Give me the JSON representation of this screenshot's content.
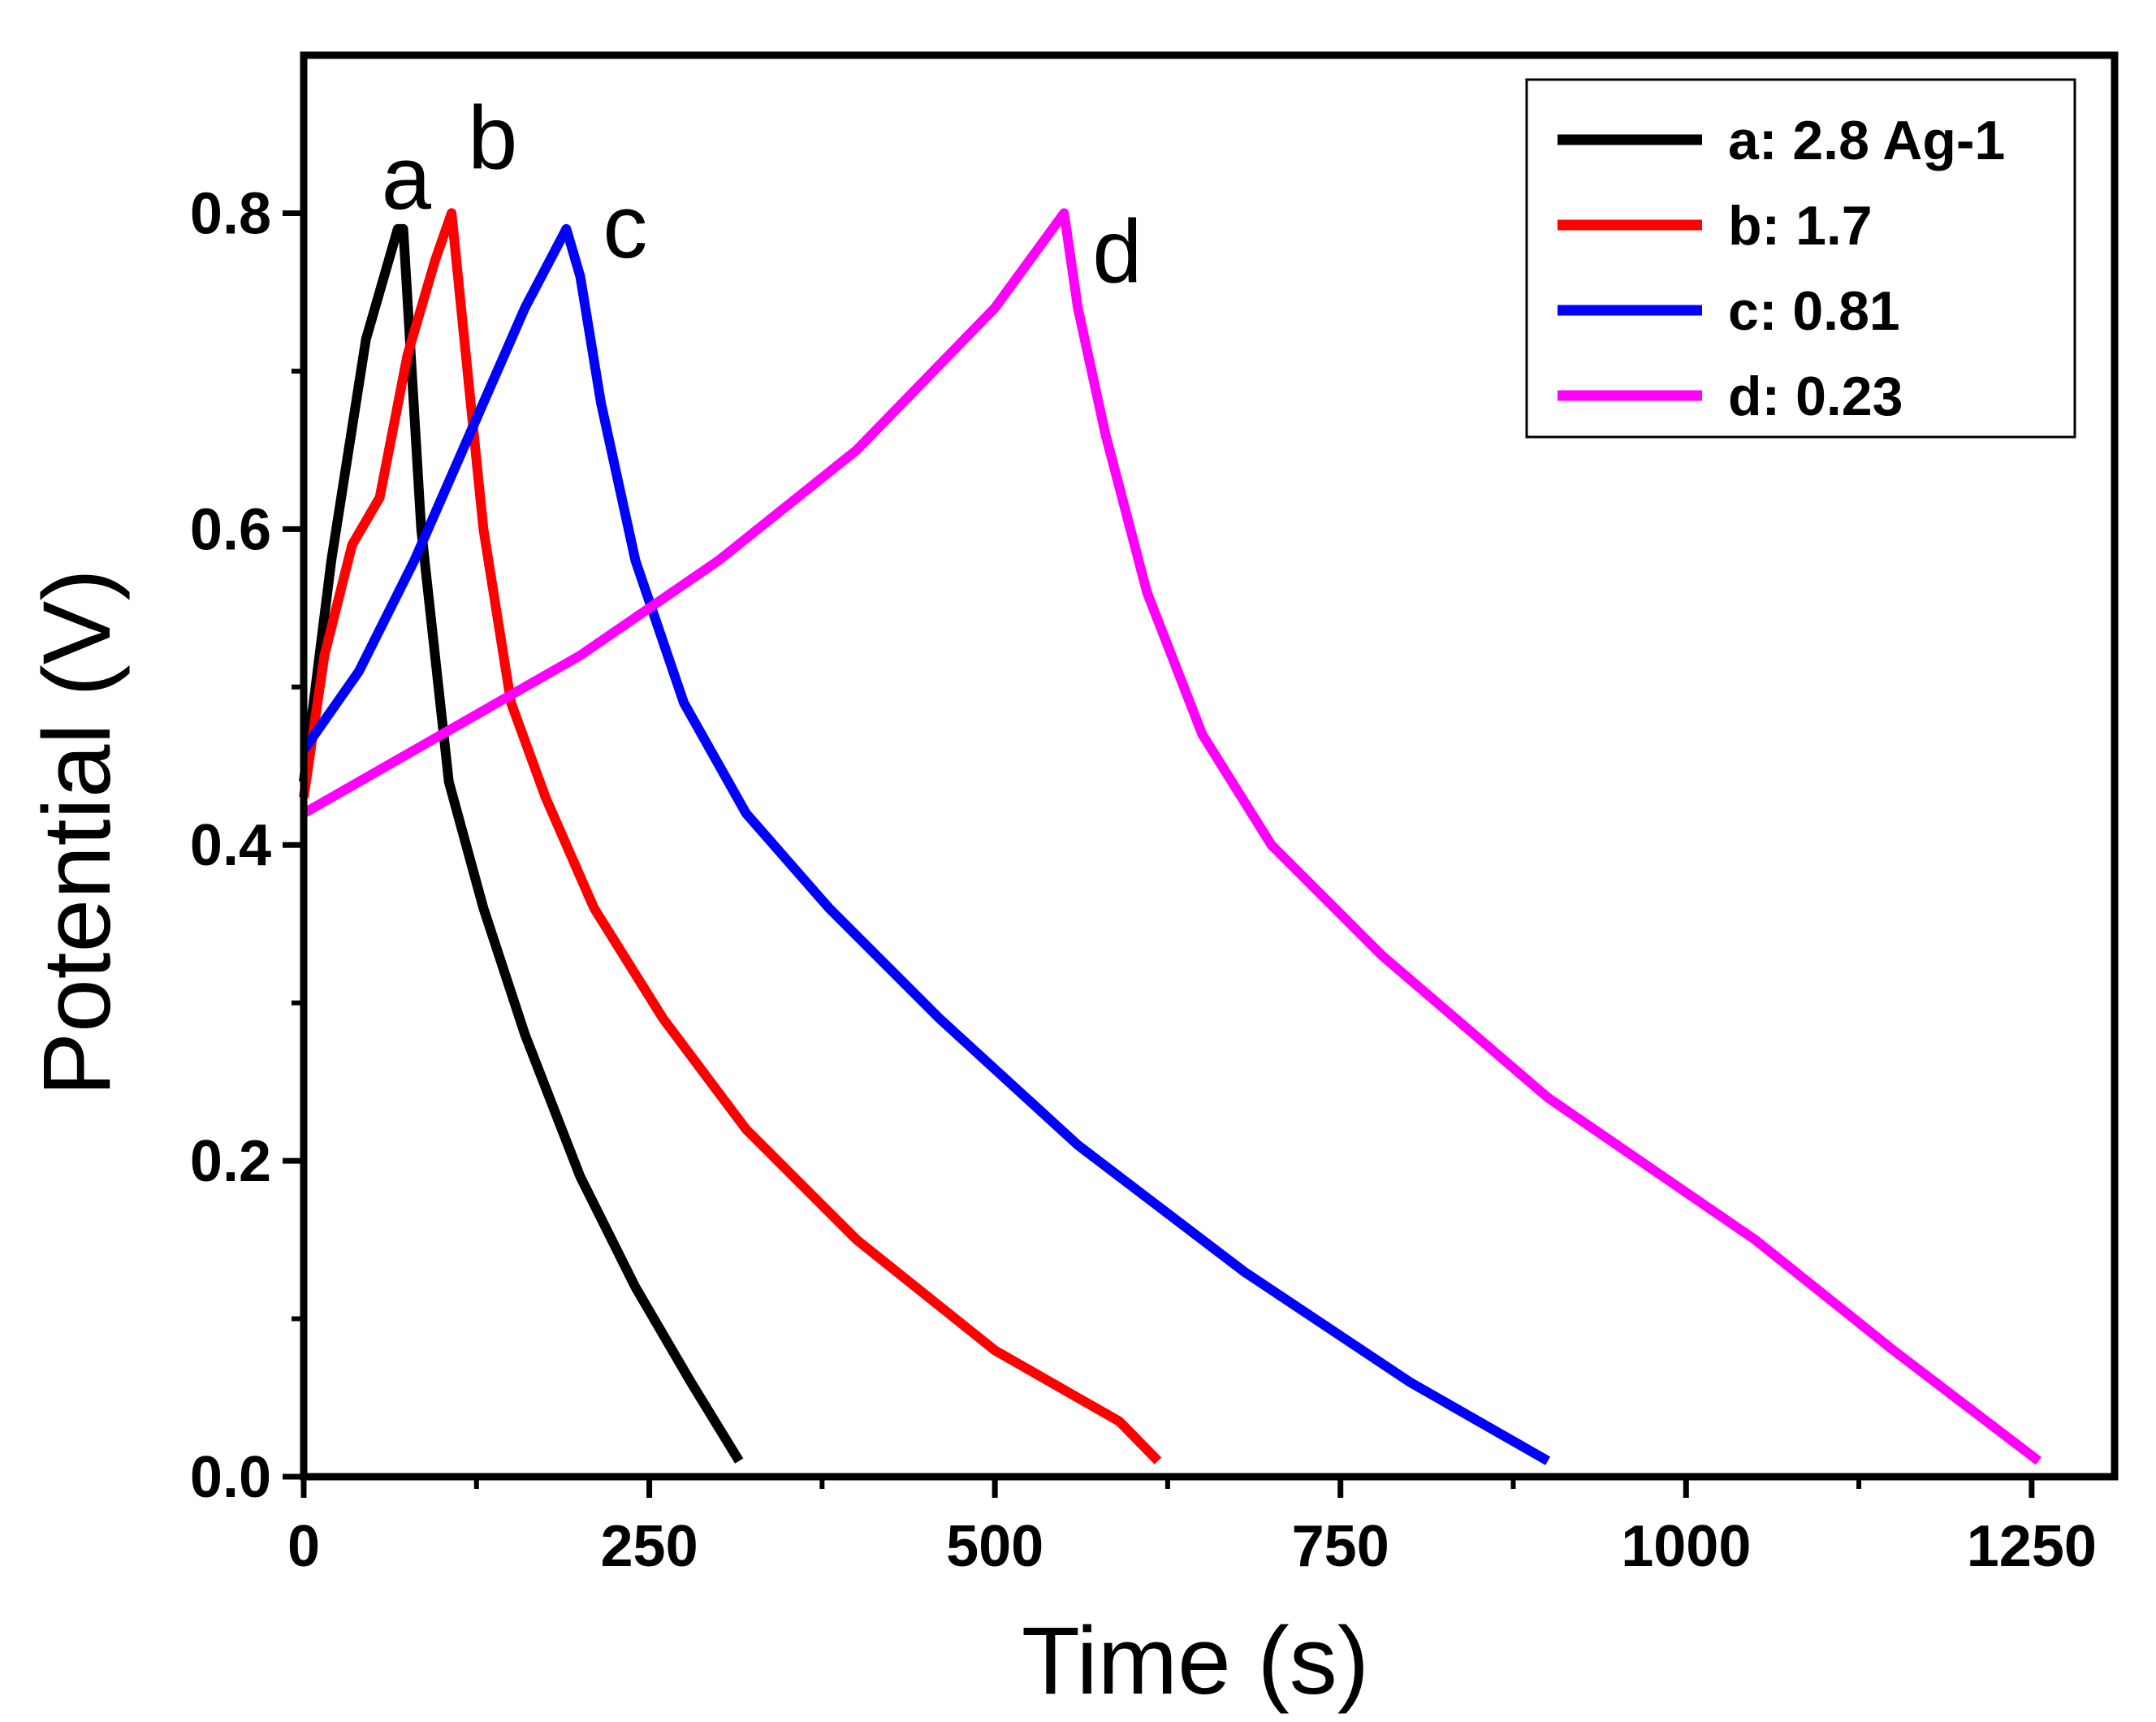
{
  "chart_data": {
    "type": "line",
    "title": "",
    "xlabel": "Time (s)",
    "ylabel": "Potential (V)",
    "xlim": [
      0,
      1310
    ],
    "ylim": [
      0,
      0.9
    ],
    "xticks": [
      0,
      250,
      500,
      750,
      1000,
      1250
    ],
    "xtick_labels": [
      "0",
      "250",
      "500",
      "750",
      "1000",
      "1250"
    ],
    "yticks": [
      0.0,
      0.2,
      0.4,
      0.6,
      0.8
    ],
    "ytick_labels": [
      "0.0",
      "0.2",
      "0.4",
      "0.6",
      "0.8"
    ],
    "grid": false,
    "legend_position": "top-right",
    "series": [
      {
        "name": "a: 2.8 Ag-1",
        "color": "#000000",
        "label": "a",
        "x": [
          0,
          20,
          45,
          68,
          72,
          85,
          105,
          130,
          160,
          200,
          240,
          280,
          315
        ],
        "y": [
          0.44,
          0.58,
          0.72,
          0.79,
          0.79,
          0.6,
          0.44,
          0.36,
          0.28,
          0.19,
          0.12,
          0.06,
          0.01
        ]
      },
      {
        "name": "b: 1.7",
        "color": "#ff0000",
        "label": "b",
        "x": [
          0,
          15,
          35,
          55,
          75,
          95,
          107,
          115,
          130,
          150,
          175,
          210,
          260,
          320,
          400,
          500,
          560,
          590,
          618
        ],
        "y": [
          0.43,
          0.52,
          0.59,
          0.62,
          0.71,
          0.77,
          0.8,
          0.73,
          0.6,
          0.49,
          0.43,
          0.36,
          0.29,
          0.22,
          0.15,
          0.08,
          0.05,
          0.035,
          0.01
        ]
      },
      {
        "name": "c: 0.81",
        "color": "#0000ff",
        "label": "c",
        "x": [
          0,
          40,
          80,
          120,
          160,
          190,
          200,
          215,
          240,
          275,
          320,
          380,
          460,
          560,
          680,
          800,
          900
        ],
        "y": [
          0.46,
          0.51,
          0.58,
          0.66,
          0.74,
          0.79,
          0.76,
          0.68,
          0.58,
          0.49,
          0.42,
          0.36,
          0.29,
          0.21,
          0.13,
          0.06,
          0.01
        ]
      },
      {
        "name": "d: 0.23",
        "color": "#ff00ff",
        "label": "d",
        "x": [
          0,
          100,
          200,
          300,
          400,
          500,
          550,
          560,
          580,
          610,
          650,
          700,
          780,
          900,
          1050,
          1150,
          1255
        ],
        "y": [
          0.42,
          0.47,
          0.52,
          0.58,
          0.65,
          0.74,
          0.8,
          0.74,
          0.66,
          0.56,
          0.47,
          0.4,
          0.33,
          0.24,
          0.15,
          0.08,
          0.01
        ]
      }
    ]
  }
}
